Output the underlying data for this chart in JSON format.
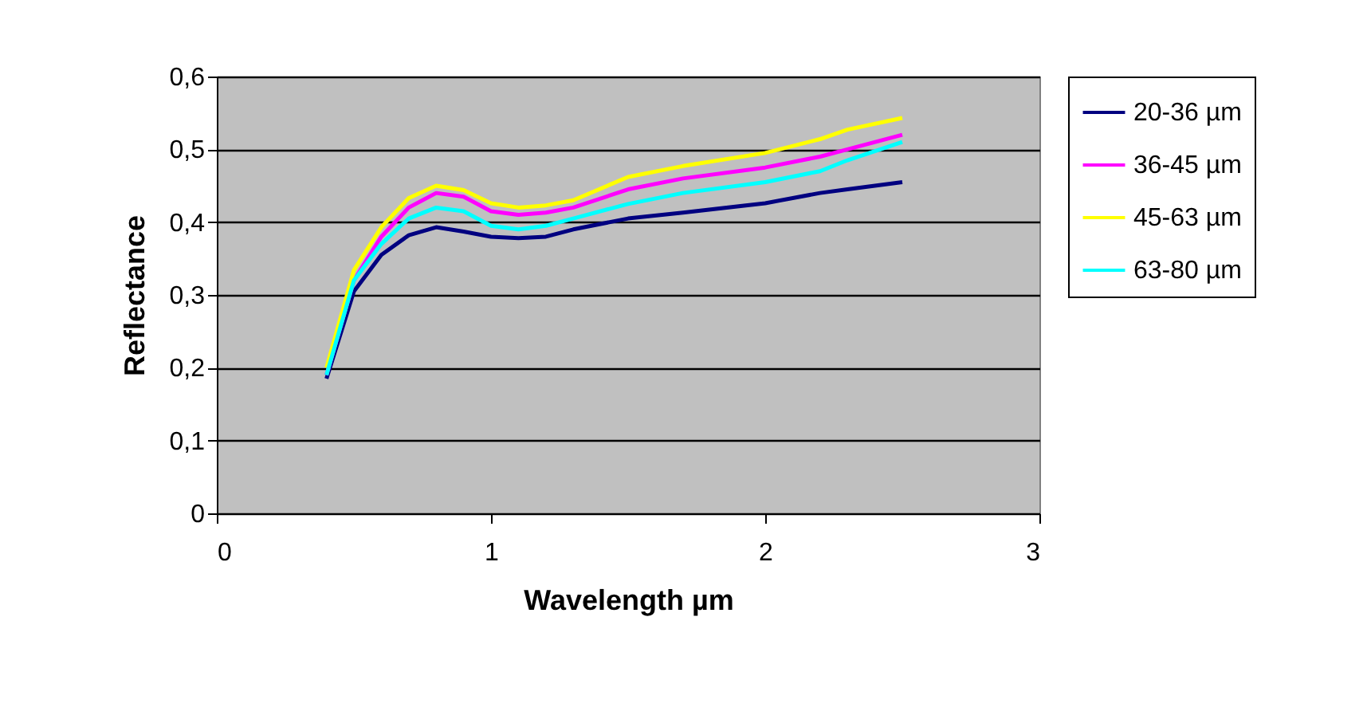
{
  "chart_data": {
    "type": "line",
    "xlabel": "Wavelength µm",
    "ylabel": "Reflectance",
    "xlim": [
      0,
      3
    ],
    "xticks": [
      0,
      1,
      2,
      3
    ],
    "ylim": [
      0,
      0.6
    ],
    "yticks": [
      {
        "value": 0,
        "label": "0"
      },
      {
        "value": 0.1,
        "label": "0,1"
      },
      {
        "value": 0.2,
        "label": "0,2"
      },
      {
        "value": 0.3,
        "label": "0,3"
      },
      {
        "value": 0.4,
        "label": "0,4"
      },
      {
        "value": 0.5,
        "label": "0,5"
      },
      {
        "value": 0.6,
        "label": "0,6"
      }
    ],
    "grid": "y",
    "legend": "right",
    "marker": "none",
    "line_style": "solid",
    "x": [
      0.4,
      0.5,
      0.6,
      0.7,
      0.8,
      0.9,
      1.0,
      1.1,
      1.2,
      1.3,
      1.5,
      1.7,
      2.0,
      2.2,
      2.3,
      2.5
    ],
    "series": [
      {
        "name": "20-36 µm",
        "color": "#000080",
        "values": [
          0.185,
          0.305,
          0.355,
          0.382,
          0.393,
          0.387,
          0.38,
          0.378,
          0.38,
          0.39,
          0.405,
          0.413,
          0.426,
          0.44,
          0.445,
          0.455
        ]
      },
      {
        "name": "36-45 µm",
        "color": "#ff00ff",
        "values": [
          0.19,
          0.32,
          0.38,
          0.42,
          0.44,
          0.435,
          0.415,
          0.41,
          0.413,
          0.42,
          0.445,
          0.46,
          0.475,
          0.49,
          0.5,
          0.52
        ]
      },
      {
        "name": "45-63 µm",
        "color": "#ffff00",
        "values": [
          0.2,
          0.334,
          0.393,
          0.433,
          0.45,
          0.444,
          0.426,
          0.42,
          0.423,
          0.43,
          0.462,
          0.477,
          0.495,
          0.514,
          0.527,
          0.543
        ]
      },
      {
        "name": "63-80 µm",
        "color": "#00ffff",
        "values": [
          0.19,
          0.32,
          0.37,
          0.405,
          0.42,
          0.415,
          0.395,
          0.39,
          0.395,
          0.405,
          0.425,
          0.44,
          0.455,
          0.47,
          0.485,
          0.51
        ]
      }
    ]
  }
}
